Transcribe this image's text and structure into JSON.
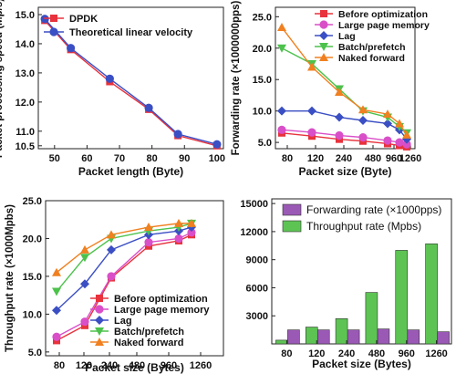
{
  "chart_data": [
    {
      "type": "line",
      "xlabel": "Packet length (Byte)",
      "ylabel": "Packet processing speed (Mp/s)",
      "xlim": [
        45,
        102
      ],
      "ylim": [
        10.4,
        15.25
      ],
      "xticks": [
        50,
        60,
        70,
        80,
        90,
        100
      ],
      "yticks": [
        10.5,
        11.0,
        12.0,
        13.0,
        14.0,
        15.0
      ],
      "grid": false,
      "legend": "top-left",
      "series": [
        {
          "name": "DPDK",
          "x": [
            47,
            55,
            67,
            79,
            88,
            100
          ],
          "y": [
            14.8,
            13.8,
            12.7,
            11.75,
            10.85,
            10.5
          ],
          "color": "#e8323c",
          "marker": "square"
        },
        {
          "name": "Theoretical linear velocity",
          "x": [
            47,
            55,
            67,
            79,
            88,
            100
          ],
          "y": [
            14.85,
            13.85,
            12.8,
            11.8,
            10.9,
            10.55
          ],
          "color": "#3b4fc4",
          "marker": "circle"
        }
      ]
    },
    {
      "type": "line",
      "xlabel": "Packet size (Byte)",
      "ylabel": "Forwarding rate (×1000000pps)",
      "categories": [
        "80",
        "120",
        "240",
        "480",
        "960",
        "1260"
      ],
      "ylim": [
        4,
        26.5
      ],
      "yticks": [
        5.0,
        10.0,
        15.0,
        20.0,
        25.0
      ],
      "grid": false,
      "legend": "top-right",
      "series": [
        {
          "name": "Before optimization",
          "x": [
            68,
            120,
            185,
            262,
            320,
            372,
            427
          ],
          "y": [
            6.5,
            6.0,
            5.5,
            5.2,
            4.8,
            4.5,
            4.3
          ],
          "color": "#e8323c",
          "marker": "square"
        },
        {
          "name": "Large page memory",
          "x": [
            68,
            120,
            185,
            262,
            320,
            372,
            427
          ],
          "y": [
            7.0,
            6.6,
            6.1,
            5.8,
            5.3,
            5.0,
            4.7
          ],
          "color": "#d94fc8",
          "marker": "circle"
        },
        {
          "name": "Lag",
          "x": [
            68,
            120,
            185,
            262,
            320,
            372,
            427
          ],
          "y": [
            10.0,
            10.0,
            9.0,
            8.5,
            8.0,
            7.0,
            5.5
          ],
          "color": "#3b4fc4",
          "marker": "diamond"
        },
        {
          "name": "Batch/prefetch",
          "x": [
            68,
            120,
            185,
            262,
            320,
            372,
            427
          ],
          "y": [
            20.0,
            17.5,
            13.5,
            10.0,
            9.0,
            7.5,
            6.5
          ],
          "color": "#4cc24c",
          "marker": "triangle-down"
        },
        {
          "name": "Naked forward",
          "x": [
            68,
            120,
            185,
            262,
            320,
            372,
            427
          ],
          "y": [
            23.3,
            17.0,
            13.0,
            10.2,
            9.5,
            8.0,
            6.2
          ],
          "color": "#f08020",
          "marker": "triangle-up"
        }
      ]
    },
    {
      "type": "line",
      "xlabel": "Packet size (Bytes)",
      "ylabel": "Throughput rate (×1000Mpbs)",
      "categories": [
        "80",
        "120",
        "240",
        "480",
        "960",
        "1260"
      ],
      "ylim": [
        4.5,
        25.0
      ],
      "yticks": [
        5.0,
        10.0,
        15.0,
        20.0,
        25.0
      ],
      "grid": false,
      "legend": "bottom-right",
      "series": [
        {
          "name": "Before optimization",
          "x": [
            80,
            120,
            240,
            480,
            960,
            1260
          ],
          "y": [
            6.5,
            8.5,
            14.8,
            19.0,
            19.7,
            20.5
          ],
          "color": "#e8323c",
          "marker": "square"
        },
        {
          "name": "Large page memory",
          "x": [
            80,
            120,
            240,
            480,
            960,
            1260
          ],
          "y": [
            7.0,
            9.0,
            15.0,
            19.5,
            20.0,
            20.8
          ],
          "color": "#d94fc8",
          "marker": "circle"
        },
        {
          "name": "Lag",
          "x": [
            80,
            120,
            240,
            480,
            960,
            1260
          ],
          "y": [
            10.5,
            14.0,
            18.5,
            20.5,
            21.0,
            21.5
          ],
          "color": "#3b4fc4",
          "marker": "diamond"
        },
        {
          "name": "Batch/prefetch",
          "x": [
            80,
            120,
            240,
            480,
            960,
            1260
          ],
          "y": [
            13.0,
            17.5,
            20.0,
            21.0,
            21.5,
            22.0
          ],
          "color": "#4cc24c",
          "marker": "triangle-down"
        },
        {
          "name": "Naked forward",
          "x": [
            80,
            120,
            240,
            480,
            960,
            1260
          ],
          "y": [
            15.5,
            18.5,
            20.5,
            21.5,
            22.0,
            22.0
          ],
          "color": "#f08020",
          "marker": "triangle-up"
        }
      ]
    },
    {
      "type": "bar",
      "xlabel": "Packet size (Bytes)",
      "ylabel": "",
      "categories": [
        "80",
        "120",
        "240",
        "480",
        "960",
        "1260"
      ],
      "ylim": [
        0,
        15500
      ],
      "yticks": [
        3000,
        6000,
        9000,
        12000,
        15000
      ],
      "grid": false,
      "legend": "top-left",
      "series": [
        {
          "name": "Forwarding rate (×1000pps)",
          "values": [
            1500,
            1500,
            1500,
            1600,
            1500,
            1300
          ],
          "color": "#9b59b6"
        },
        {
          "name": "Throughput rate (Mpbs)",
          "values": [
            400,
            1800,
            2700,
            5500,
            10000,
            10700
          ],
          "color": "#5dc454"
        }
      ]
    }
  ]
}
